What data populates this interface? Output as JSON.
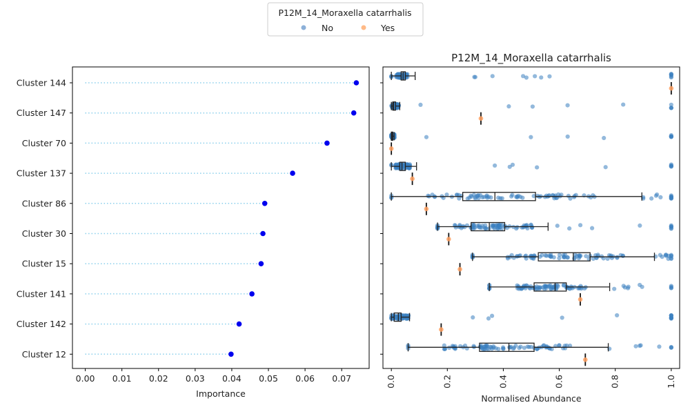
{
  "legend": {
    "title": "P12M_14_Moraxella catarrhalis",
    "entries": [
      {
        "label": "No",
        "color": "#5b8fc8"
      },
      {
        "label": "Yes",
        "color": "#ffb27a"
      }
    ]
  },
  "chart_data": [
    {
      "type": "lollipop",
      "xlabel": "Importance",
      "xlim": [
        -0.0035,
        0.0775
      ],
      "xticks": [
        "0.00",
        "0.01",
        "0.02",
        "0.03",
        "0.04",
        "0.05",
        "0.06",
        "0.07"
      ],
      "xtick_values": [
        0,
        0.01,
        0.02,
        0.03,
        0.04,
        0.05,
        0.06,
        0.07
      ],
      "categories": [
        "Cluster 144",
        "Cluster 147",
        "Cluster 70",
        "Cluster 137",
        "Cluster 86",
        "Cluster 30",
        "Cluster 15",
        "Cluster 141",
        "Cluster 142",
        "Cluster 12"
      ],
      "values": [
        0.074,
        0.0733,
        0.066,
        0.0566,
        0.049,
        0.0485,
        0.048,
        0.0455,
        0.042,
        0.0398
      ],
      "point_color": "#0000ee",
      "line_color": "#87ceeb"
    },
    {
      "type": "box_strip",
      "title": "P12M_14_Moraxella catarrhalis",
      "xlabel": "Normalised Abundance",
      "xlim": [
        -0.03,
        1.03
      ],
      "xticks": [
        "0.0",
        "0.2",
        "0.4",
        "0.6",
        "0.8",
        "1.0"
      ],
      "xtick_values": [
        0,
        0.2,
        0.4,
        0.6,
        0.8,
        1.0
      ],
      "categories": [
        "Cluster 144",
        "Cluster 147",
        "Cluster 70",
        "Cluster 137",
        "Cluster 86",
        "Cluster 30",
        "Cluster 15",
        "Cluster 141",
        "Cluster 142",
        "Cluster 12"
      ],
      "series": [
        {
          "name": "No",
          "boxes": [
            {
              "whislo": 0.0,
              "q1": 0.035,
              "med": 0.042,
              "q3": 0.05,
              "whishi": 0.085
            },
            {
              "whislo": 0.0,
              "q1": 0.005,
              "med": 0.008,
              "q3": 0.015,
              "whishi": 0.03
            },
            {
              "whislo": 0.0,
              "q1": 0.0,
              "med": 0.002,
              "q3": 0.005,
              "whishi": 0.01
            },
            {
              "whislo": 0.0,
              "q1": 0.03,
              "med": 0.038,
              "q3": 0.05,
              "whishi": 0.09
            },
            {
              "whislo": 0.0,
              "q1": 0.255,
              "med": 0.37,
              "q3": 0.515,
              "whishi": 0.895
            },
            {
              "whislo": 0.165,
              "q1": 0.285,
              "med": 0.35,
              "q3": 0.405,
              "whishi": 0.56
            },
            {
              "whislo": 0.29,
              "q1": 0.525,
              "med": 0.65,
              "q3": 0.71,
              "whishi": 0.94
            },
            {
              "whislo": 0.35,
              "q1": 0.51,
              "med": 0.585,
              "q3": 0.625,
              "whishi": 0.78
            },
            {
              "whislo": 0.0,
              "q1": 0.01,
              "med": 0.025,
              "q3": 0.035,
              "whishi": 0.065
            },
            {
              "whislo": 0.06,
              "q1": 0.315,
              "med": 0.42,
              "q3": 0.51,
              "whishi": 0.775
            }
          ]
        },
        {
          "name": "Yes",
          "values": [
            1.0,
            0.32,
            0.0,
            0.075,
            0.125,
            0.205,
            0.245,
            0.675,
            0.178,
            0.693
          ]
        }
      ]
    }
  ]
}
